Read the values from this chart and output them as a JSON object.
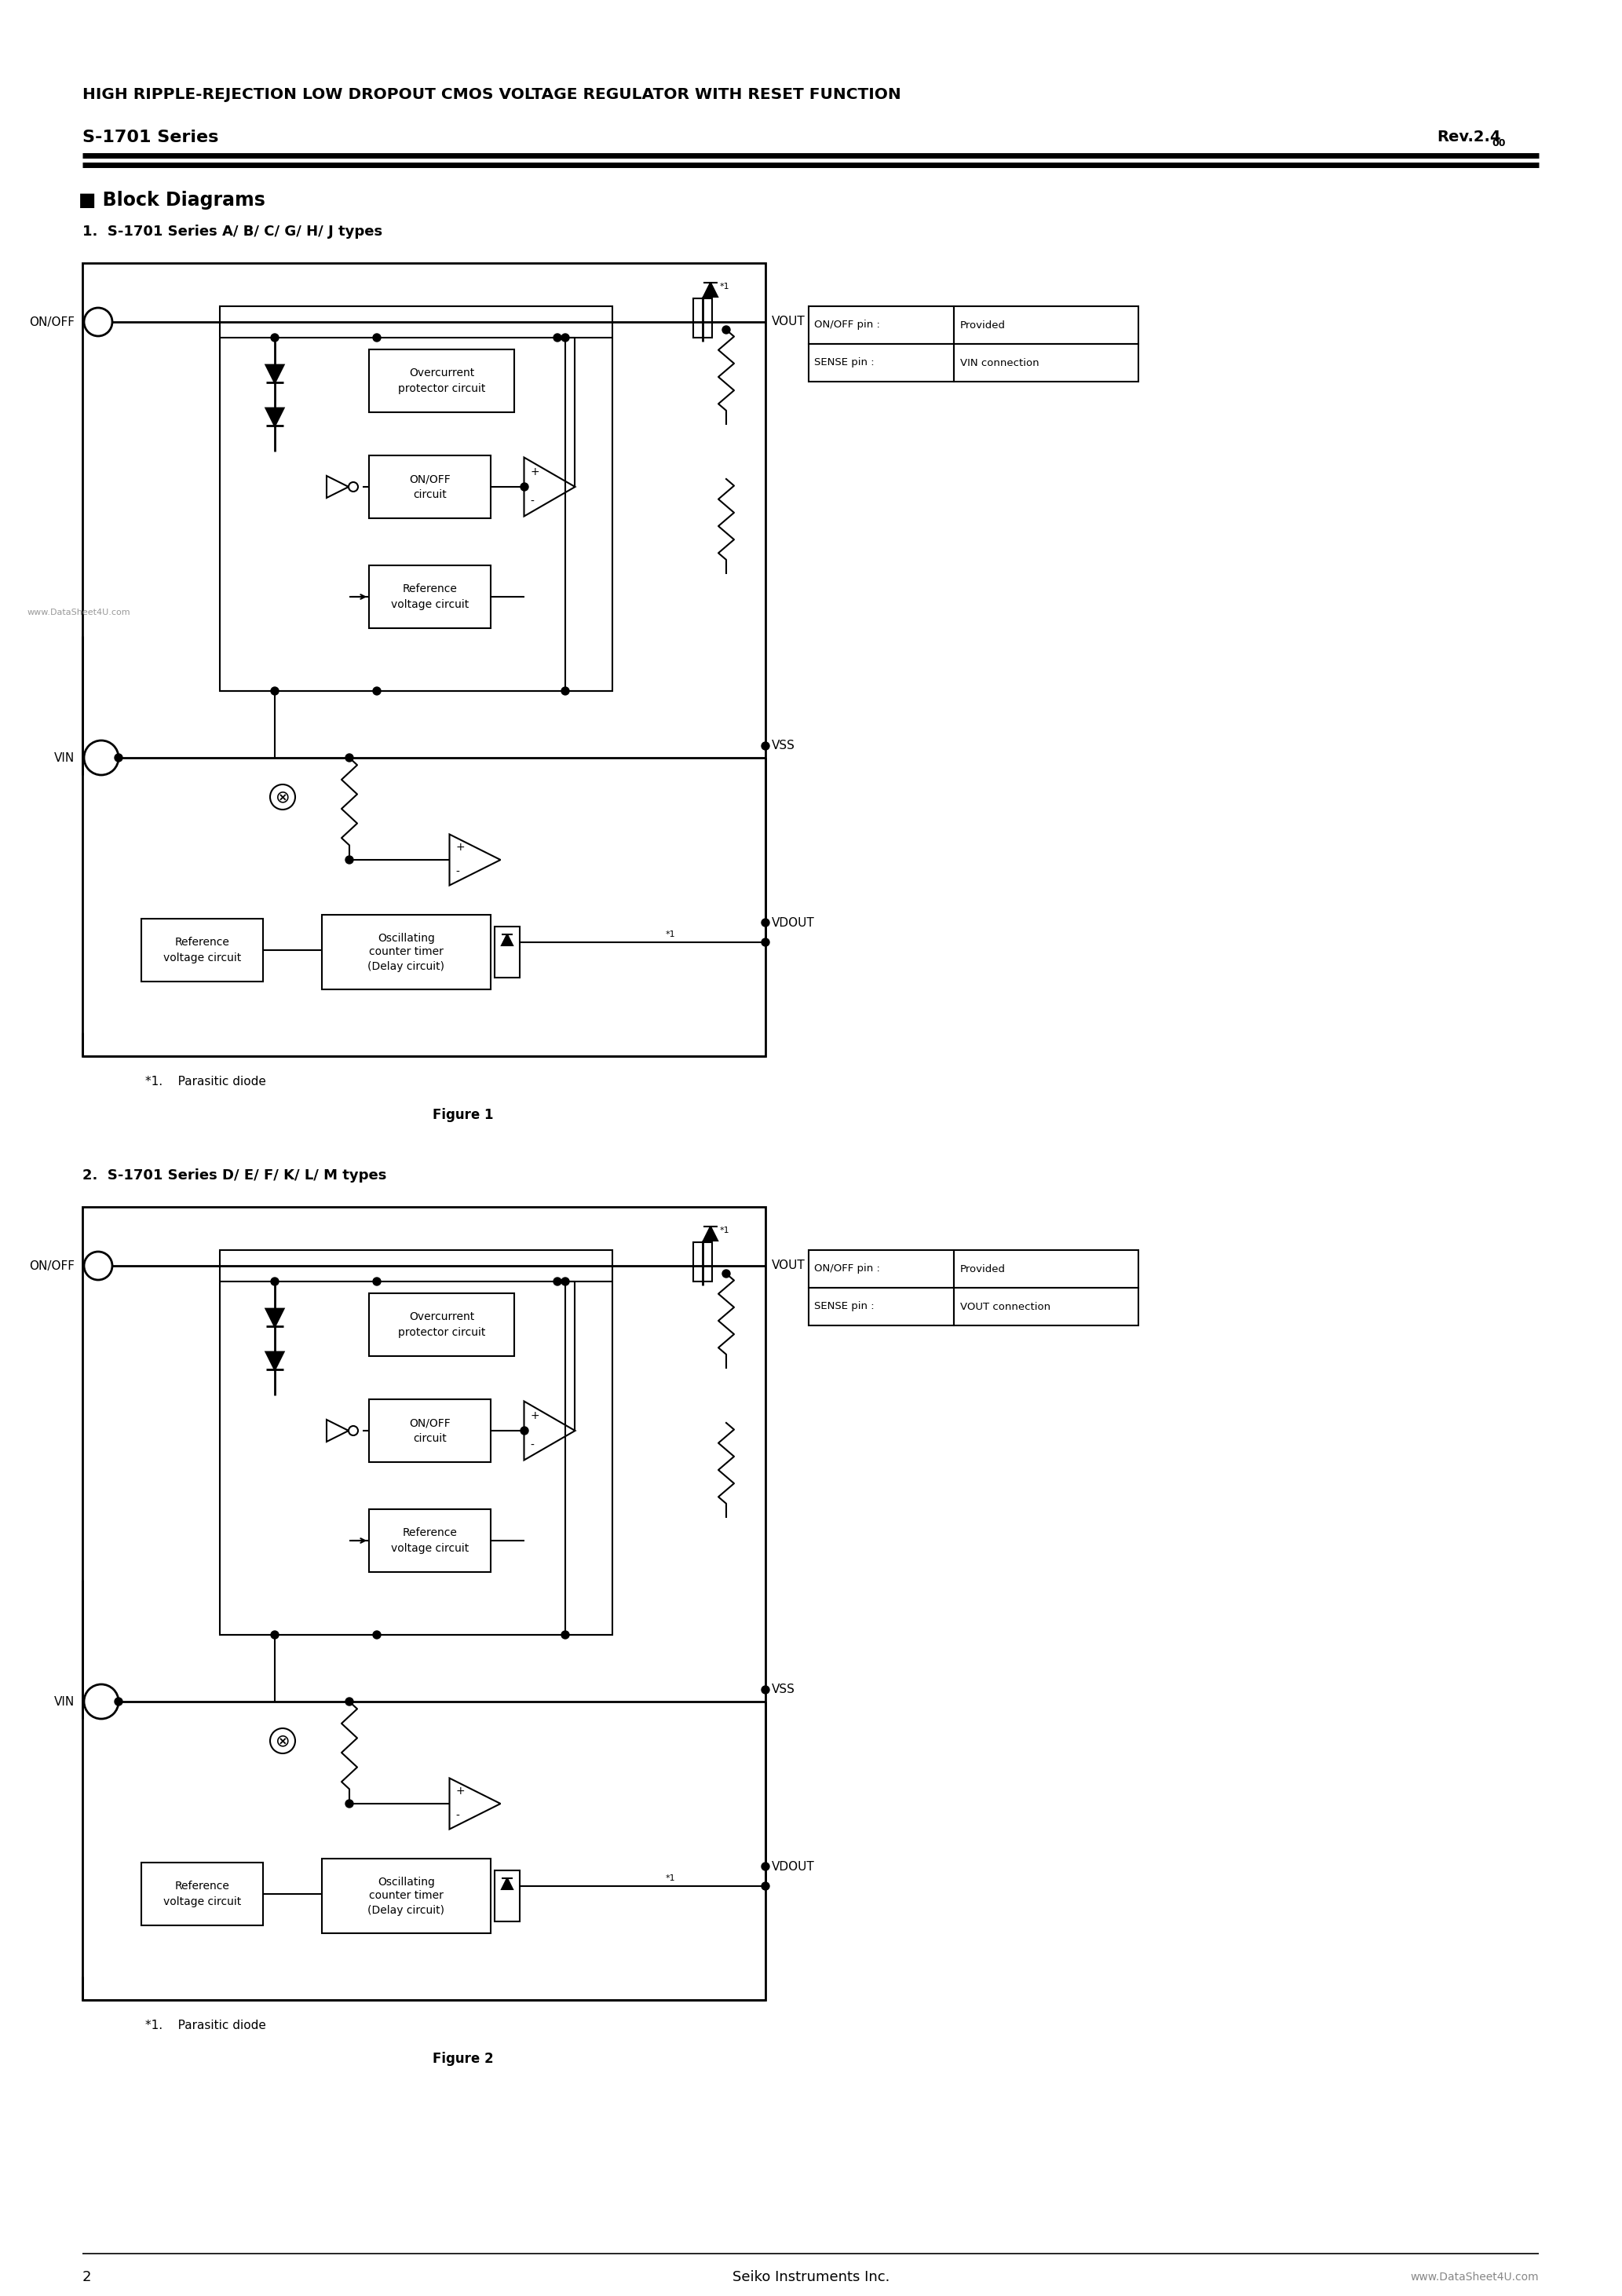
{
  "page_title_line1": "HIGH RIPPLE-REJECTION LOW DROPOUT CMOS VOLTAGE REGULATOR WITH RESET FUNCTION",
  "page_title_line2": "S-1701 Series",
  "page_rev": "Rev.2.4",
  "page_rev_sub": "00",
  "section_title": "■ Block Diagrams",
  "fig1_title": "1.  S-1701 Series A/ B/ C/ G/ H/ J types",
  "fig2_title": "2.  S-1701 Series D/ E/ F/ K/ L/ M types",
  "fig1_caption": "Figure 1",
  "fig2_caption": "Figure 2",
  "parasitic_note": "*1.    Parasitic diode",
  "table1": [
    [
      "ON/OFF pin :",
      "Provided"
    ],
    [
      "SENSE pin :",
      "VIN connection"
    ]
  ],
  "table2": [
    [
      "ON/OFF pin :",
      "Provided"
    ],
    [
      "SENSE pin :",
      "VOUT connection"
    ]
  ],
  "watermark": "www.DataSheet4U.com",
  "footer_page": "2",
  "footer_center": "Seiko Instruments Inc.",
  "footer_right": "www.DataSheet4U.com",
  "bg_color": "#ffffff",
  "line_color": "#000000"
}
